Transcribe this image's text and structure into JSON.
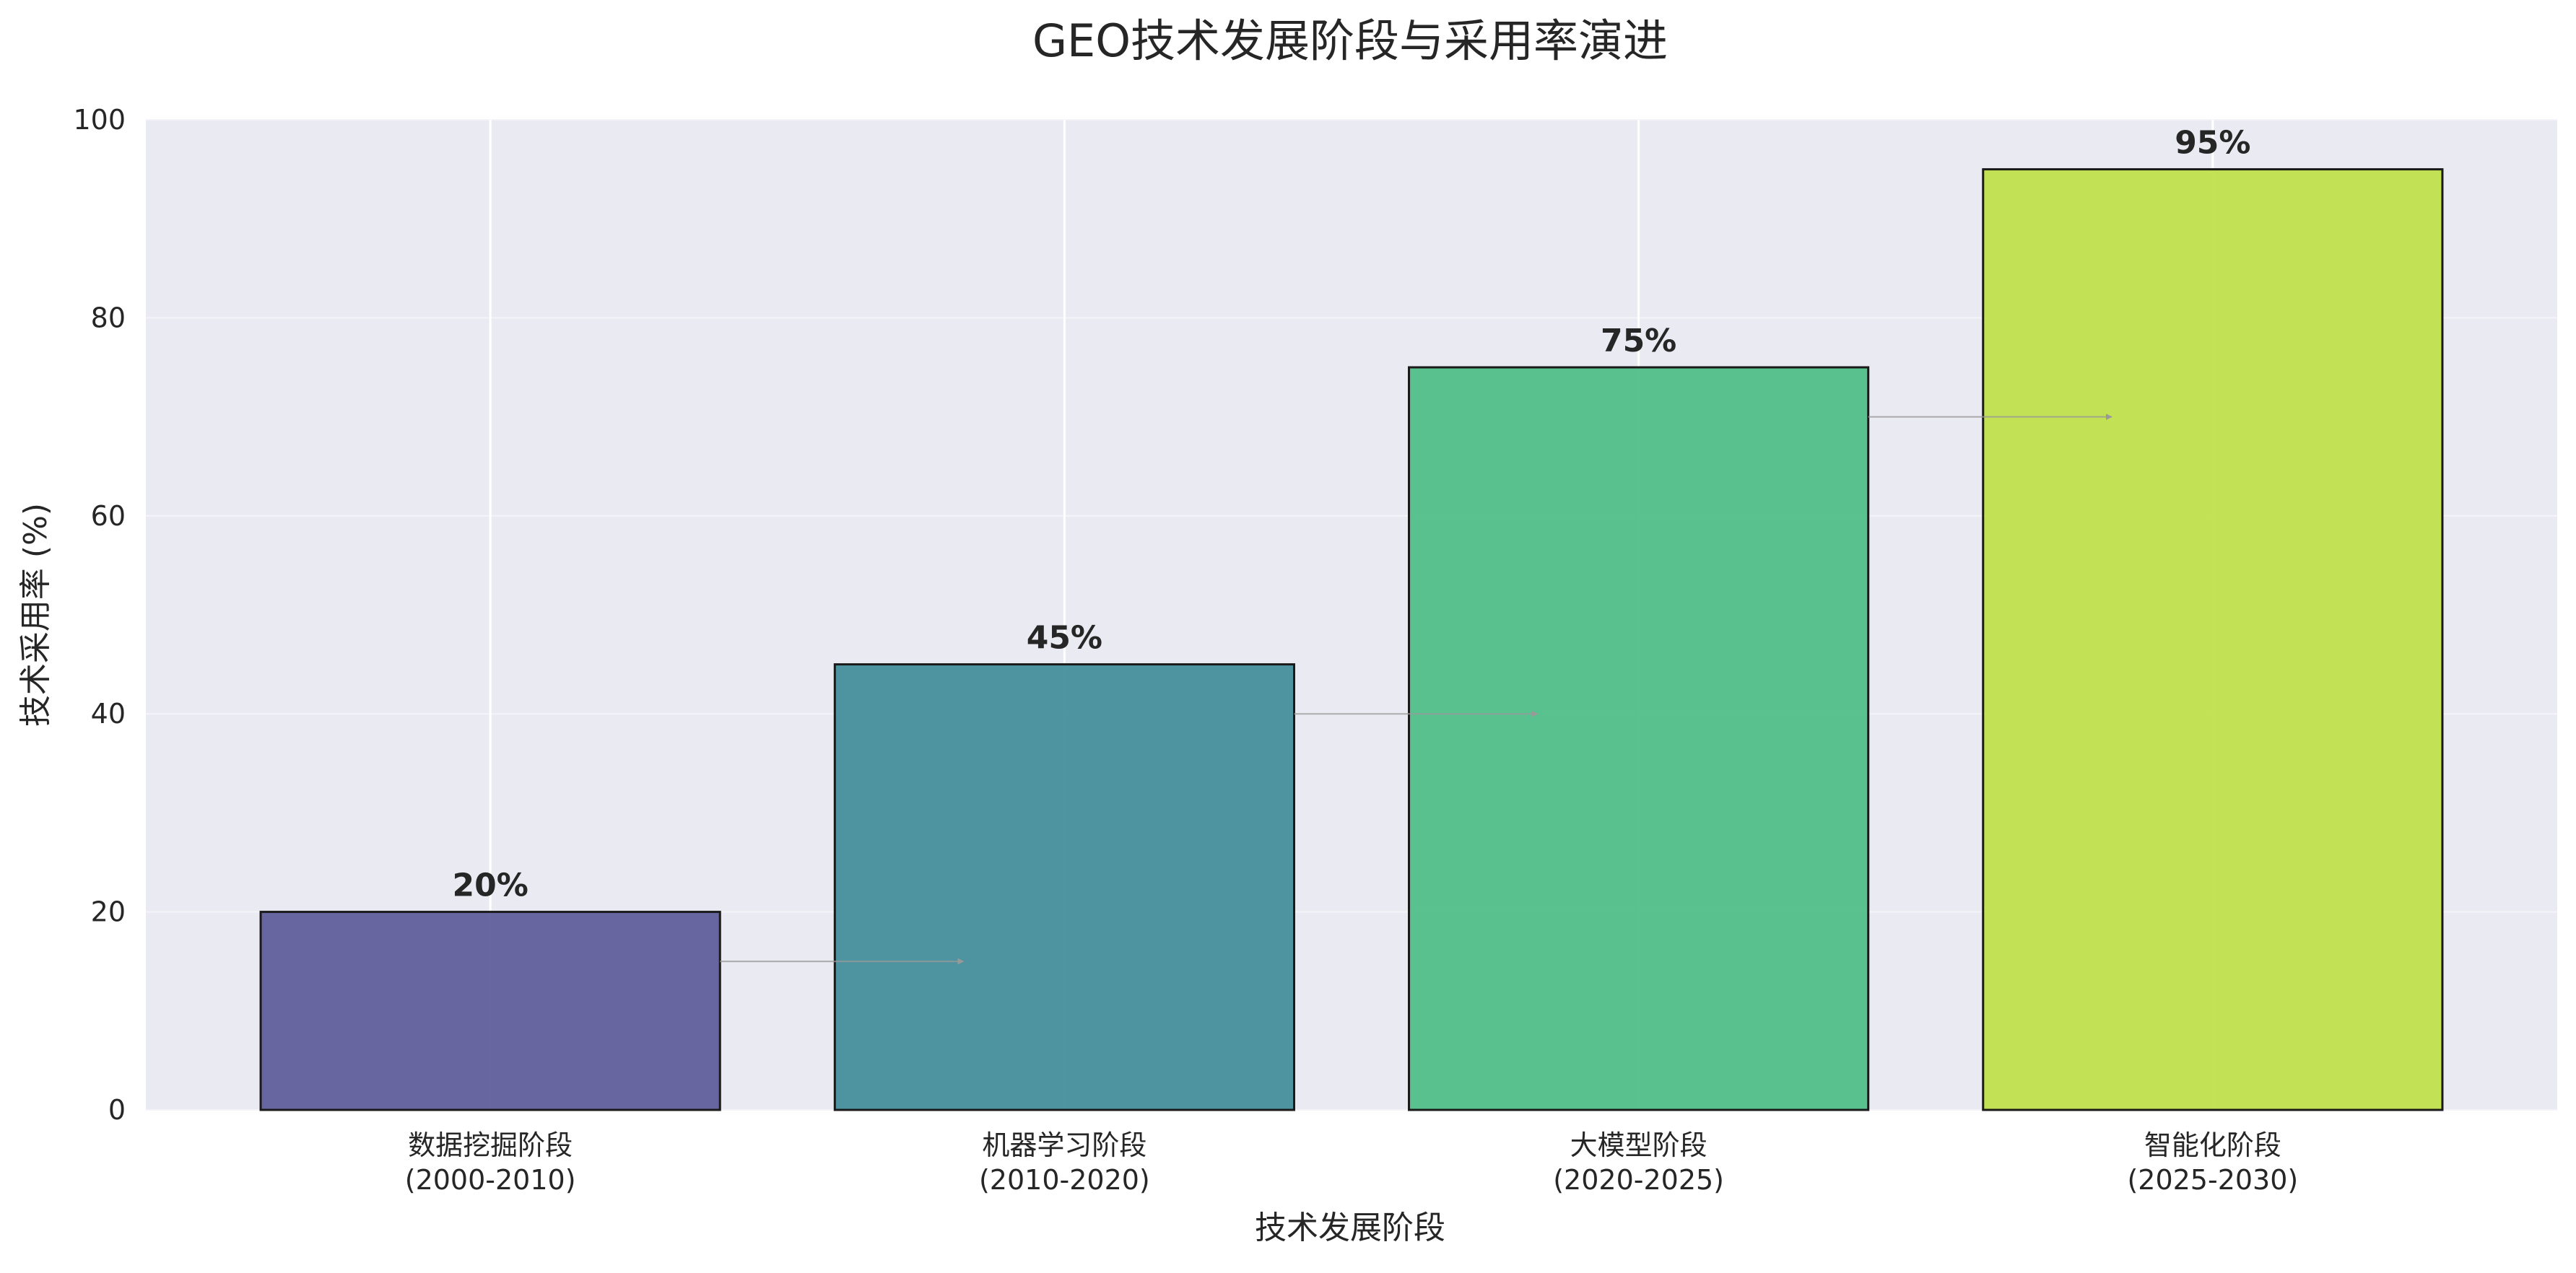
{
  "chart_data": {
    "type": "bar",
    "title": "GEO技术发展阶段与采用率演进",
    "xlabel": "技术发展阶段",
    "ylabel": "技术采用率 (%)",
    "ylim": [
      0,
      100
    ],
    "yticks": [
      0,
      20,
      40,
      60,
      80,
      100
    ],
    "categories": [
      [
        "数据挖掘阶段",
        "(2000-2010)"
      ],
      [
        "机器学习阶段",
        "(2010-2020)"
      ],
      [
        "大模型阶段",
        "(2020-2025)"
      ],
      [
        "智能化阶段",
        "(2025-2030)"
      ]
    ],
    "values": [
      20,
      45,
      75,
      95
    ],
    "value_labels": [
      "20%",
      "45%",
      "75%",
      "95%"
    ],
    "bar_colors": [
      "#5b5a99",
      "#3f8c99",
      "#4bbd86",
      "#bfdf47"
    ],
    "grid": true,
    "background": "#eaeaf2",
    "arrows_between_bars": true,
    "arrow_color": "#999999"
  }
}
